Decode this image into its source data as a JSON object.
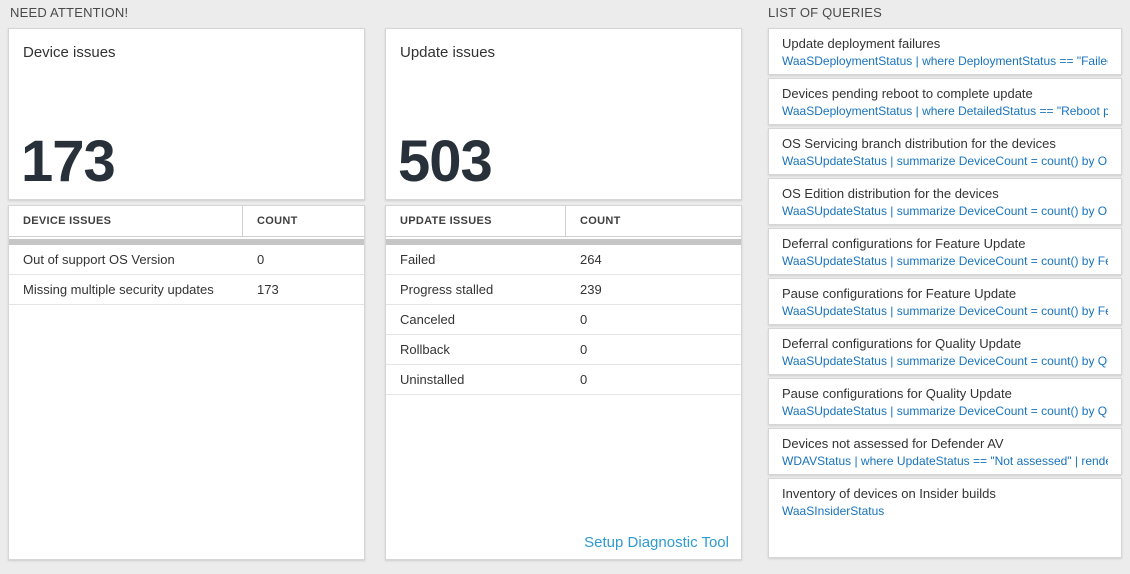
{
  "sections": {
    "need_attention": "NEED ATTENTION!",
    "list_of_queries": "LIST OF QUERIES"
  },
  "device_issues": {
    "title": "Device issues",
    "big_number": "173",
    "table": {
      "headers": [
        "DEVICE ISSUES",
        "COUNT"
      ],
      "rows": [
        {
          "name": "Out of support OS Version",
          "count": "0"
        },
        {
          "name": "Missing multiple security updates",
          "count": "173"
        }
      ]
    }
  },
  "update_issues": {
    "title": "Update issues",
    "big_number": "503",
    "table": {
      "headers": [
        "UPDATE ISSUES",
        "COUNT"
      ],
      "rows": [
        {
          "name": "Failed",
          "count": "264"
        },
        {
          "name": "Progress stalled",
          "count": "239"
        },
        {
          "name": "Canceled",
          "count": "0"
        },
        {
          "name": "Rollback",
          "count": "0"
        },
        {
          "name": "Uninstalled",
          "count": "0"
        }
      ]
    },
    "footer_link": "Setup Diagnostic Tool"
  },
  "queries": {
    "items": [
      {
        "name": "Update deployment failures",
        "kql": "WaaSDeploymentStatus | where DeploymentStatus == \"Failed\" |..."
      },
      {
        "name": "Devices pending reboot to complete update",
        "kql": "WaaSDeploymentStatus | where DetailedStatus == \"Reboot pend..."
      },
      {
        "name": "OS Servicing branch distribution for the devices",
        "kql": "WaaSUpdateStatus | summarize DeviceCount = count() by OSSer..."
      },
      {
        "name": "OS Edition distribution for the devices",
        "kql": "WaaSUpdateStatus | summarize DeviceCount = count() by OSEdit..."
      },
      {
        "name": "Deferral configurations for Feature Update",
        "kql": "WaaSUpdateStatus | summarize DeviceCount = count() by Featur..."
      },
      {
        "name": "Pause configurations for Feature Update",
        "kql": "WaaSUpdateStatus | summarize DeviceCount = count() by Featur..."
      },
      {
        "name": "Deferral configurations for Quality Update",
        "kql": "WaaSUpdateStatus | summarize DeviceCount = count() by Qualit..."
      },
      {
        "name": "Pause configurations for Quality Update",
        "kql": "WaaSUpdateStatus | summarize DeviceCount = count() by Qualit..."
      },
      {
        "name": "Devices not assessed for Defender AV",
        "kql": "WDAVStatus | where UpdateStatus == \"Not assessed\" | render ta..."
      },
      {
        "name": "Inventory of devices on Insider builds",
        "kql": "WaaSInsiderStatus"
      }
    ]
  },
  "colors": {
    "page_bg": "#ececec",
    "kql_link": "#1873bd",
    "footer_link": "#2f9ad2",
    "big_number": "#28313a",
    "scroll_track": "#c6c6c6"
  }
}
